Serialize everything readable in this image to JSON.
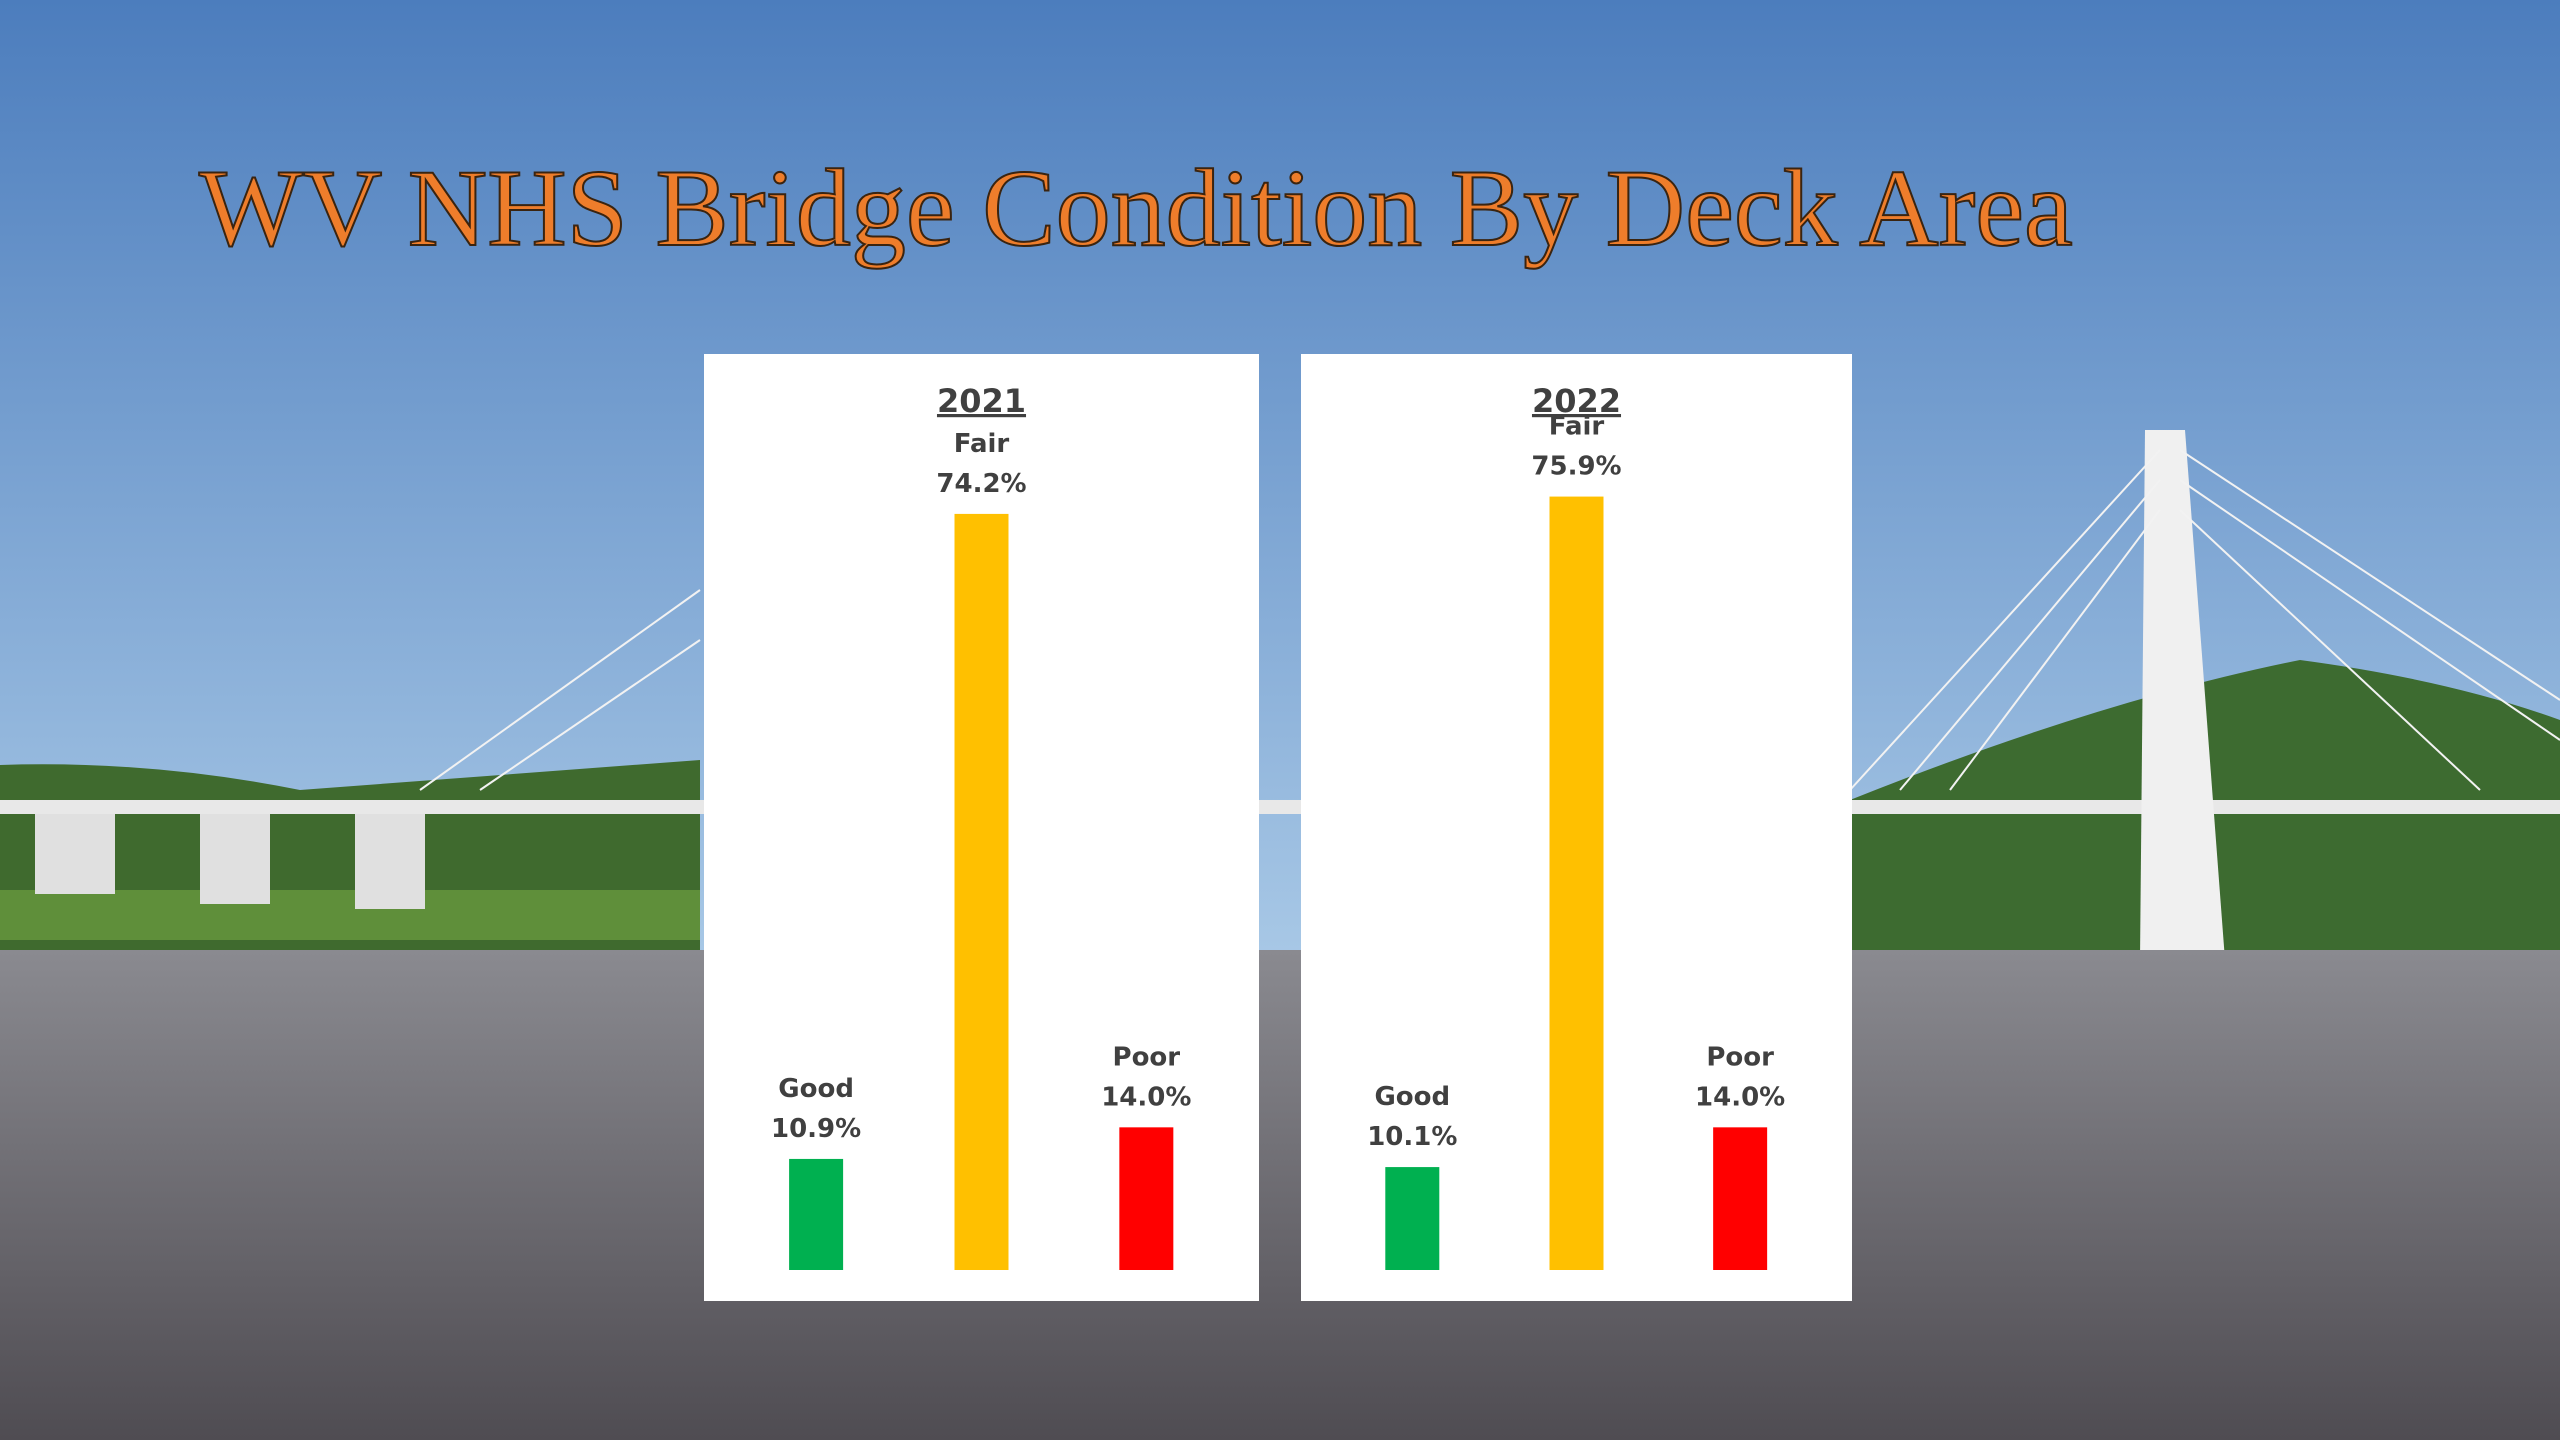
{
  "title": "WV NHS Bridge Condition By Deck Area",
  "chart_data": [
    {
      "type": "bar",
      "title": "2021",
      "categories": [
        "Good",
        "Fair",
        "Poor"
      ],
      "values": [
        10.9,
        74.2,
        14.0
      ],
      "value_labels": [
        "10.9%",
        "74.2%",
        "14.0%"
      ],
      "colors": [
        "#00b050",
        "#ffc000",
        "#ff0000"
      ]
    },
    {
      "type": "bar",
      "title": "2022",
      "categories": [
        "Good",
        "Fair",
        "Poor"
      ],
      "values": [
        10.1,
        75.9,
        14.0
      ],
      "value_labels": [
        "10.1%",
        "75.9%",
        "14.0%"
      ],
      "colors": [
        "#00b050",
        "#ffc000",
        "#ff0000"
      ]
    }
  ]
}
